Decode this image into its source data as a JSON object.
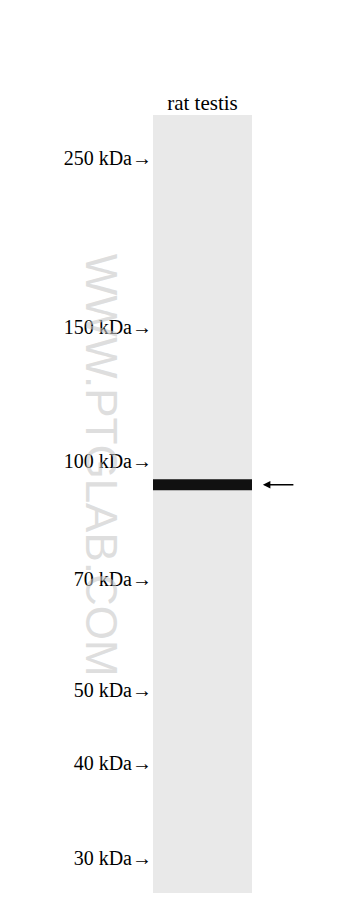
{
  "chart_data": {
    "type": "western_blot",
    "categories": [
      "rat testis"
    ],
    "values": [
      93
    ],
    "color": "#111111",
    "log": "y",
    "grid": false,
    "ylim": [
      27,
      285
    ],
    "yticks": [
      {
        "value": 250,
        "label": "250 kDa→"
      },
      {
        "value": 150,
        "label": "150 kDa→"
      },
      {
        "value": 100,
        "label": "100 kDa→"
      },
      {
        "value": 70,
        "label": "70 kDa→"
      },
      {
        "value": 50,
        "label": "50 kDa→"
      },
      {
        "value": 40,
        "label": "40 kDa→"
      },
      {
        "value": 30,
        "label": "30 kDa→"
      }
    ],
    "watermark": "WWW.PTGLAB.COM"
  }
}
